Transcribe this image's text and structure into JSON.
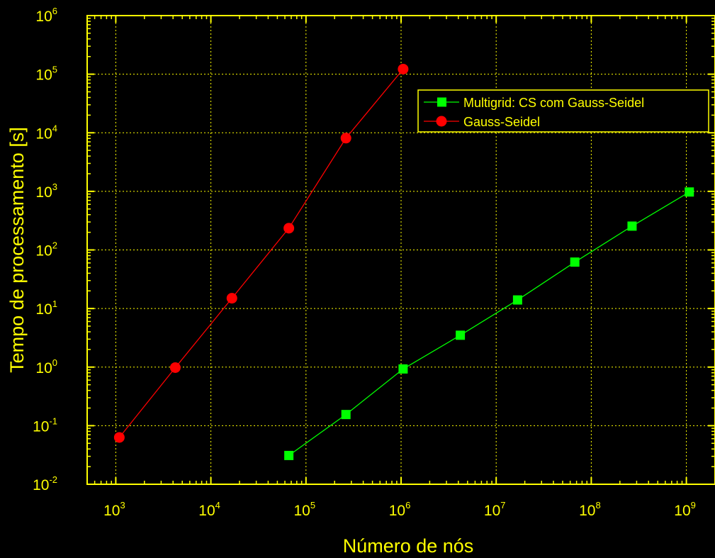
{
  "colors": {
    "background": "#000000",
    "axis": "#ffff00",
    "grid": "#ffff00",
    "text": "#ffff00",
    "multigrid": "#00ff00",
    "gauss_seidel": "#ff0000"
  },
  "chart_data": {
    "type": "line",
    "title": "",
    "xlabel": "Número de nós",
    "ylabel": "Tempo de processamento [s]",
    "xscale": "log",
    "yscale": "log",
    "xlim": [
      500,
      2000000000
    ],
    "ylim": [
      0.01,
      1000000
    ],
    "grid": true,
    "legend_position": "top-right",
    "x_ticks": [
      {
        "value": 1000,
        "base": "10",
        "exp": "3"
      },
      {
        "value": 10000,
        "base": "10",
        "exp": "4"
      },
      {
        "value": 100000,
        "base": "10",
        "exp": "5"
      },
      {
        "value": 1000000,
        "base": "10",
        "exp": "6"
      },
      {
        "value": 10000000,
        "base": "10",
        "exp": "7"
      },
      {
        "value": 100000000,
        "base": "10",
        "exp": "8"
      },
      {
        "value": 1000000000,
        "base": "10",
        "exp": "9"
      }
    ],
    "y_ticks": [
      {
        "value": 0.01,
        "base": "10",
        "exp": "-2"
      },
      {
        "value": 0.1,
        "base": "10",
        "exp": "-1"
      },
      {
        "value": 1,
        "base": "10",
        "exp": "0"
      },
      {
        "value": 10,
        "base": "10",
        "exp": "1"
      },
      {
        "value": 100,
        "base": "10",
        "exp": "2"
      },
      {
        "value": 1000,
        "base": "10",
        "exp": "3"
      },
      {
        "value": 10000,
        "base": "10",
        "exp": "4"
      },
      {
        "value": 100000,
        "base": "10",
        "exp": "5"
      },
      {
        "value": 1000000,
        "base": "10",
        "exp": "6"
      }
    ],
    "series": [
      {
        "name": "Multigrid: CS com Gauss-Seidel",
        "marker": "square",
        "color": "#00ff00",
        "x": [
          66049,
          263169,
          1050625,
          4198401,
          16785409,
          67125249,
          268468225,
          1073807361
        ],
        "y": [
          0.031,
          0.155,
          0.93,
          3.5,
          14,
          62,
          255,
          975
        ]
      },
      {
        "name": "Gauss-Seidel",
        "marker": "circle",
        "color": "#ff0000",
        "x": [
          1089,
          4225,
          16641,
          66049,
          263169,
          1050625
        ],
        "y": [
          0.063,
          0.98,
          15,
          235,
          8100,
          122000
        ]
      }
    ]
  }
}
